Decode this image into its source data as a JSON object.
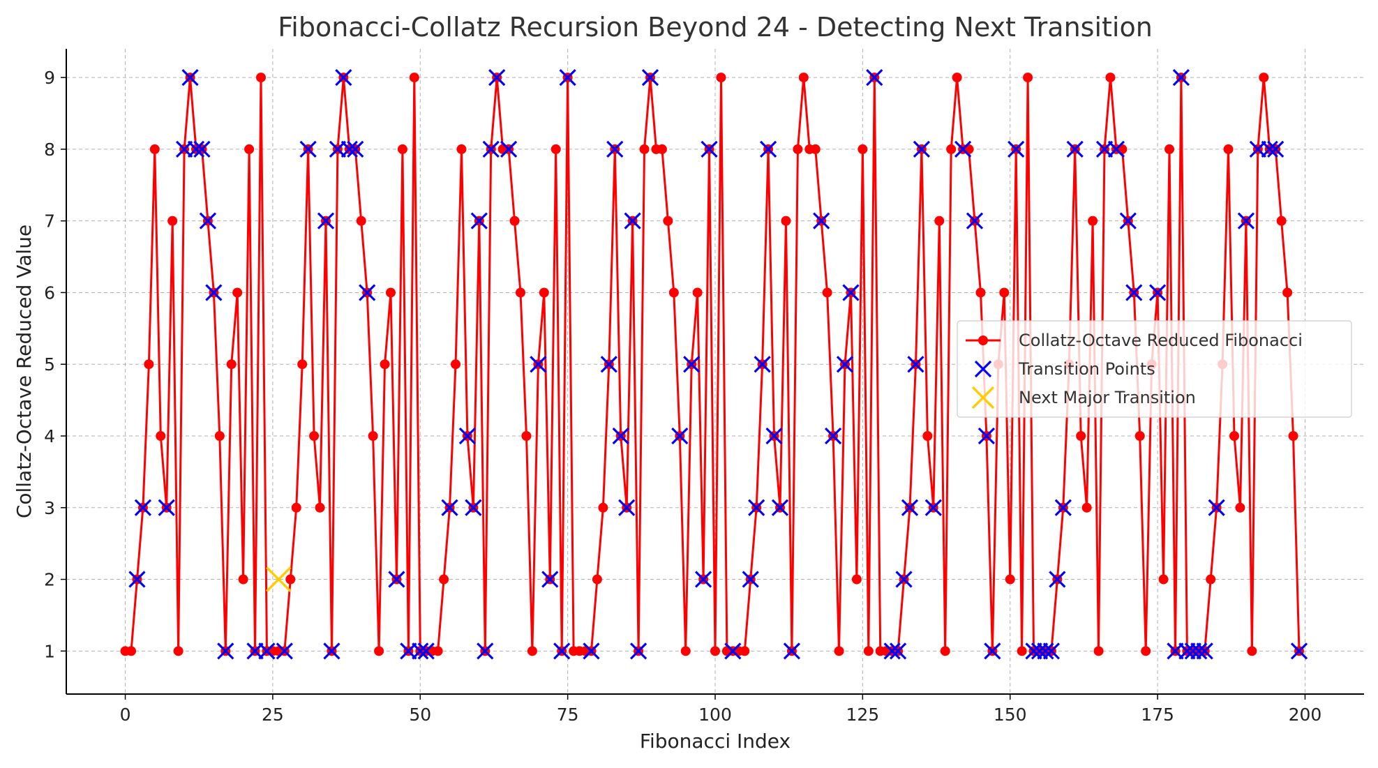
{
  "chart_data": {
    "type": "line",
    "title": "Fibonacci-Collatz Recursion Beyond 24 - Detecting Next Transition",
    "xlabel": "Fibonacci Index",
    "ylabel": "Collatz-Octave Reduced Value",
    "xlim": [
      -10,
      210
    ],
    "ylim": [
      0.4,
      9.4
    ],
    "xticks": [
      0,
      25,
      50,
      75,
      100,
      125,
      150,
      175,
      200
    ],
    "yticks": [
      1,
      2,
      3,
      4,
      5,
      6,
      7,
      8,
      9
    ],
    "grid": true,
    "legend_position": "center-right",
    "pattern": [
      1,
      1,
      2,
      3,
      5,
      8,
      4,
      3,
      7,
      1,
      8,
      9,
      8,
      8,
      7,
      6,
      4,
      1,
      5,
      6,
      2,
      8,
      1,
      9,
      1,
      1
    ],
    "x_range": [
      0,
      199
    ],
    "series": [
      {
        "name": "Collatz-Octave Reduced Fibonacci",
        "kind": "line-marker",
        "color": "#ff0000",
        "marker": "circle"
      },
      {
        "name": "Transition Points",
        "kind": "scatter",
        "color": "#0000ff",
        "marker": "x",
        "x": [
          2,
          3,
          7,
          10,
          11,
          12,
          13,
          14,
          15,
          17,
          22,
          24,
          27,
          31,
          34,
          35,
          36,
          37,
          38,
          39,
          41,
          46,
          48,
          50,
          51,
          55,
          58,
          59,
          60,
          61,
          62,
          63,
          65,
          70,
          72,
          74,
          75,
          79,
          82,
          83,
          84,
          85,
          86,
          87,
          89,
          94,
          96,
          98,
          99,
          103,
          106,
          107,
          108,
          109,
          110,
          111,
          113,
          118,
          120,
          122,
          123,
          127,
          130,
          131,
          132,
          133,
          134,
          135,
          137,
          142,
          144,
          146,
          147,
          151,
          154,
          155,
          156,
          157,
          158,
          159,
          161,
          166,
          168,
          170,
          171,
          175,
          178,
          179,
          180,
          181,
          182,
          183,
          185,
          190,
          192,
          194,
          195,
          199
        ]
      },
      {
        "name": "Next Major Transition",
        "kind": "scatter",
        "color": "#ffcc00",
        "marker": "x",
        "x": [
          26
        ],
        "y": [
          2
        ]
      }
    ]
  }
}
